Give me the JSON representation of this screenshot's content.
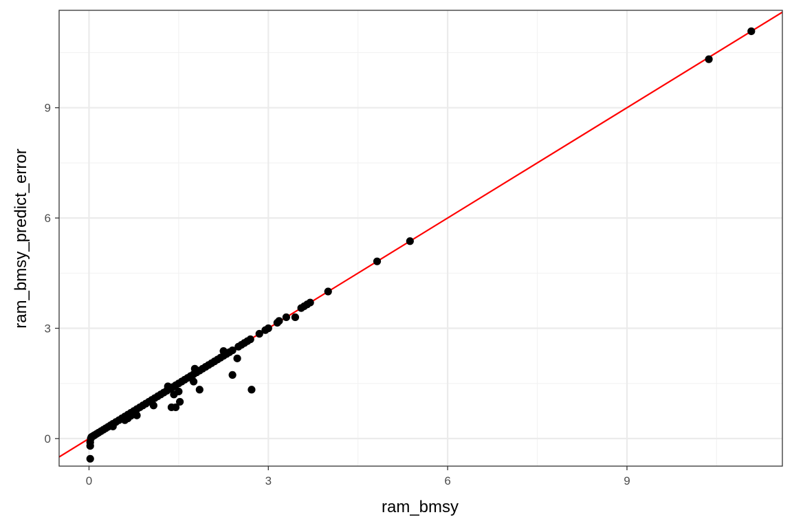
{
  "chart_data": {
    "type": "scatter",
    "title": "",
    "xlabel": "ram_bmsy",
    "ylabel": "ram_bmsy_predict_error",
    "xlim": [
      -0.5,
      11.6
    ],
    "ylim": [
      -0.75,
      11.65
    ],
    "x_ticks": [
      0,
      3,
      6,
      9
    ],
    "y_ticks": [
      0,
      3,
      6,
      9
    ],
    "x_tick_labels": [
      "0",
      "3",
      "6",
      "9"
    ],
    "y_tick_labels": [
      "0",
      "3",
      "6",
      "9"
    ],
    "grid": true,
    "legend": "none",
    "colors": {
      "points": "#000000",
      "reference_line": "#ff0000",
      "panel_border": "#333333",
      "grid_major": "#ebebeb",
      "grid_minor": "#f2f2f2",
      "tick_label": "#4d4d4d"
    },
    "reference_line": {
      "intercept": 0,
      "slope": 1
    },
    "points": [
      [
        0.02,
        -0.55
      ],
      [
        0.02,
        -0.2
      ],
      [
        0.02,
        -0.1
      ],
      [
        0.03,
        0.0
      ],
      [
        0.04,
        0.04
      ],
      [
        0.06,
        0.06
      ],
      [
        0.08,
        0.08
      ],
      [
        0.1,
        0.1
      ],
      [
        0.13,
        0.13
      ],
      [
        0.16,
        0.16
      ],
      [
        0.2,
        0.2
      ],
      [
        0.24,
        0.24
      ],
      [
        0.28,
        0.28
      ],
      [
        0.32,
        0.32
      ],
      [
        0.36,
        0.36
      ],
      [
        0.4,
        0.4
      ],
      [
        0.4,
        0.33
      ],
      [
        0.45,
        0.45
      ],
      [
        0.5,
        0.5
      ],
      [
        0.55,
        0.55
      ],
      [
        0.6,
        0.6
      ],
      [
        0.6,
        0.5
      ],
      [
        0.65,
        0.65
      ],
      [
        0.65,
        0.55
      ],
      [
        0.7,
        0.7
      ],
      [
        0.7,
        0.62
      ],
      [
        0.75,
        0.75
      ],
      [
        0.8,
        0.8
      ],
      [
        0.8,
        0.63
      ],
      [
        0.85,
        0.85
      ],
      [
        0.9,
        0.9
      ],
      [
        0.95,
        0.95
      ],
      [
        1.0,
        1.0
      ],
      [
        1.05,
        1.05
      ],
      [
        1.08,
        0.9
      ],
      [
        1.1,
        1.1
      ],
      [
        1.15,
        1.15
      ],
      [
        1.2,
        1.2
      ],
      [
        1.25,
        1.25
      ],
      [
        1.3,
        1.3
      ],
      [
        1.32,
        1.42
      ],
      [
        1.35,
        1.35
      ],
      [
        1.38,
        0.85
      ],
      [
        1.4,
        1.4
      ],
      [
        1.42,
        1.2
      ],
      [
        1.45,
        1.45
      ],
      [
        1.45,
        0.85
      ],
      [
        1.5,
        1.5
      ],
      [
        1.5,
        1.28
      ],
      [
        1.52,
        1.0
      ],
      [
        1.55,
        1.55
      ],
      [
        1.6,
        1.6
      ],
      [
        1.65,
        1.65
      ],
      [
        1.7,
        1.7
      ],
      [
        1.75,
        1.75
      ],
      [
        1.75,
        1.55
      ],
      [
        1.77,
        1.9
      ],
      [
        1.8,
        1.8
      ],
      [
        1.85,
        1.85
      ],
      [
        1.85,
        1.33
      ],
      [
        1.9,
        1.9
      ],
      [
        1.95,
        1.95
      ],
      [
        2.0,
        2.0
      ],
      [
        2.05,
        2.05
      ],
      [
        2.1,
        2.1
      ],
      [
        2.15,
        2.15
      ],
      [
        2.2,
        2.2
      ],
      [
        2.25,
        2.25
      ],
      [
        2.25,
        2.38
      ],
      [
        2.3,
        2.3
      ],
      [
        2.35,
        2.35
      ],
      [
        2.4,
        2.4
      ],
      [
        2.4,
        1.73
      ],
      [
        2.48,
        2.18
      ],
      [
        2.5,
        2.5
      ],
      [
        2.55,
        2.55
      ],
      [
        2.6,
        2.6
      ],
      [
        2.65,
        2.65
      ],
      [
        2.7,
        2.7
      ],
      [
        2.72,
        1.33
      ],
      [
        2.85,
        2.85
      ],
      [
        2.95,
        2.95
      ],
      [
        3.0,
        3.0
      ],
      [
        3.15,
        3.15
      ],
      [
        3.18,
        3.2
      ],
      [
        3.3,
        3.3
      ],
      [
        3.45,
        3.3
      ],
      [
        3.55,
        3.55
      ],
      [
        3.6,
        3.6
      ],
      [
        3.65,
        3.65
      ],
      [
        3.7,
        3.7
      ],
      [
        4.0,
        4.0
      ],
      [
        4.82,
        4.82
      ],
      [
        5.37,
        5.37
      ],
      [
        10.37,
        10.32
      ],
      [
        11.08,
        11.08
      ]
    ]
  }
}
